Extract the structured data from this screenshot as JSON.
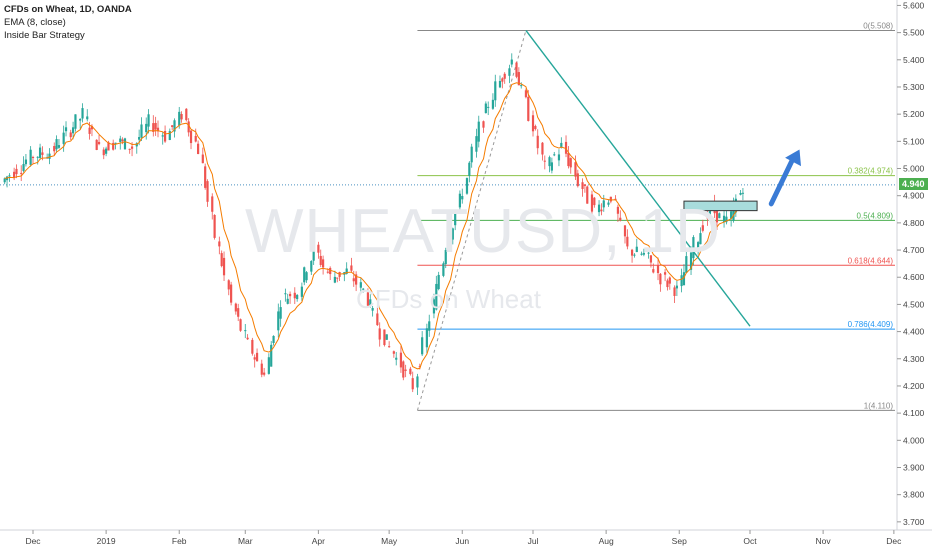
{
  "legend": {
    "symbol_line": "CFDs on Wheat, 1D, OANDA",
    "ema_line": "EMA (8, close)",
    "strategy_line": "Inside Bar Strategy"
  },
  "watermark": {
    "symbol": "WHEATUSD, 1D",
    "description": "CFDs on Wheat"
  },
  "current_price": {
    "label": "4.940",
    "value": 4.94,
    "color": "#4caf50"
  },
  "colors": {
    "up": "#26a69a",
    "down": "#ef5350",
    "ema": "#f57c00",
    "trendline": "#26a69a",
    "arrow": "#3a7bd5",
    "box_fill": "#a8dcdc",
    "box_border": "#333333",
    "price_line": "#4a90c0"
  },
  "chart_data": {
    "type": "candlestick",
    "title": "CFDs on Wheat, 1D, OANDA",
    "xlabel": "",
    "ylabel": "",
    "ylim": [
      3.67,
      5.62
    ],
    "y_ticks": [
      "5.600",
      "5.500",
      "5.400",
      "5.300",
      "5.200",
      "5.100",
      "5.000",
      "4.900",
      "4.800",
      "4.700",
      "4.600",
      "4.500",
      "4.400",
      "4.300",
      "4.200",
      "4.100",
      "4.000",
      "3.900",
      "3.800",
      "3.700"
    ],
    "x_ticks": [
      "Dec",
      "2019",
      "Feb",
      "Mar",
      "Apr",
      "May",
      "Jun",
      "Jul",
      "Aug",
      "Sep",
      "Oct",
      "Nov",
      "Dec"
    ],
    "grid": false,
    "price_series": [
      {
        "date": "2018-11-19",
        "close": 4.95
      },
      {
        "date": "2018-11-26",
        "close": 5.0
      },
      {
        "date": "2018-12-03",
        "close": 5.05
      },
      {
        "date": "2018-12-10",
        "close": 5.06
      },
      {
        "date": "2018-12-17",
        "close": 5.13
      },
      {
        "date": "2018-12-24",
        "close": 5.2
      },
      {
        "date": "2018-12-31",
        "close": 5.07
      },
      {
        "date": "2019-01-07",
        "close": 5.1
      },
      {
        "date": "2019-01-14",
        "close": 5.08
      },
      {
        "date": "2019-01-21",
        "close": 5.17
      },
      {
        "date": "2019-01-28",
        "close": 5.12
      },
      {
        "date": "2019-02-04",
        "close": 5.2
      },
      {
        "date": "2019-02-11",
        "close": 5.07
      },
      {
        "date": "2019-02-18",
        "close": 4.75
      },
      {
        "date": "2019-02-25",
        "close": 4.5
      },
      {
        "date": "2019-03-04",
        "close": 4.35
      },
      {
        "date": "2019-03-11",
        "close": 4.24
      },
      {
        "date": "2019-03-18",
        "close": 4.52
      },
      {
        "date": "2019-03-25",
        "close": 4.55
      },
      {
        "date": "2019-04-01",
        "close": 4.7
      },
      {
        "date": "2019-04-08",
        "close": 4.6
      },
      {
        "date": "2019-04-15",
        "close": 4.62
      },
      {
        "date": "2019-04-22",
        "close": 4.55
      },
      {
        "date": "2019-04-29",
        "close": 4.4
      },
      {
        "date": "2019-05-06",
        "close": 4.3
      },
      {
        "date": "2019-05-13",
        "close": 4.2
      },
      {
        "date": "2019-05-20",
        "close": 4.45
      },
      {
        "date": "2019-05-27",
        "close": 4.72
      },
      {
        "date": "2019-06-03",
        "close": 4.92
      },
      {
        "date": "2019-06-10",
        "close": 5.15
      },
      {
        "date": "2019-06-17",
        "close": 5.3
      },
      {
        "date": "2019-06-24",
        "close": 5.4
      },
      {
        "date": "2019-07-01",
        "close": 5.2
      },
      {
        "date": "2019-07-08",
        "close": 5.0
      },
      {
        "date": "2019-07-15",
        "close": 5.08
      },
      {
        "date": "2019-07-22",
        "close": 4.95
      },
      {
        "date": "2019-07-29",
        "close": 4.85
      },
      {
        "date": "2019-08-05",
        "close": 4.9
      },
      {
        "date": "2019-08-12",
        "close": 4.7
      },
      {
        "date": "2019-08-19",
        "close": 4.68
      },
      {
        "date": "2019-08-26",
        "close": 4.6
      },
      {
        "date": "2019-09-02",
        "close": 4.55
      },
      {
        "date": "2019-09-09",
        "close": 4.72
      },
      {
        "date": "2019-09-16",
        "close": 4.85
      },
      {
        "date": "2019-09-23",
        "close": 4.8
      },
      {
        "date": "2019-09-30",
        "close": 4.94
      }
    ],
    "fibonacci": {
      "start": {
        "date": "2019-05-13",
        "price": 4.11
      },
      "end": {
        "date": "2019-06-28",
        "price": 5.508
      },
      "levels": [
        {
          "label": "0(5.508)",
          "value": 5.508,
          "color": "#888888"
        },
        {
          "label": "0.382(4.974)",
          "value": 4.974,
          "color": "#8bc34a"
        },
        {
          "label": "0.5(4.809)",
          "value": 4.809,
          "color": "#4caf50"
        },
        {
          "label": "0.618(4.644)",
          "value": 4.644,
          "color": "#ef5350"
        },
        {
          "label": "0.786(4.409)",
          "value": 4.409,
          "color": "#2196f3"
        },
        {
          "label": "1(4.110)",
          "value": 4.11,
          "color": "#888888"
        }
      ]
    },
    "trendline": [
      {
        "date": "2019-06-28",
        "price": 5.508
      },
      {
        "date": "2019-10-01",
        "price": 4.42
      }
    ],
    "resistance_box": {
      "from": "2019-09-03",
      "to": "2019-10-04",
      "low": 4.845,
      "high": 4.88
    },
    "projection_arrow": [
      {
        "date": "2019-10-10",
        "price": 4.87
      },
      {
        "date": "2019-10-22",
        "price": 5.07
      }
    ]
  }
}
